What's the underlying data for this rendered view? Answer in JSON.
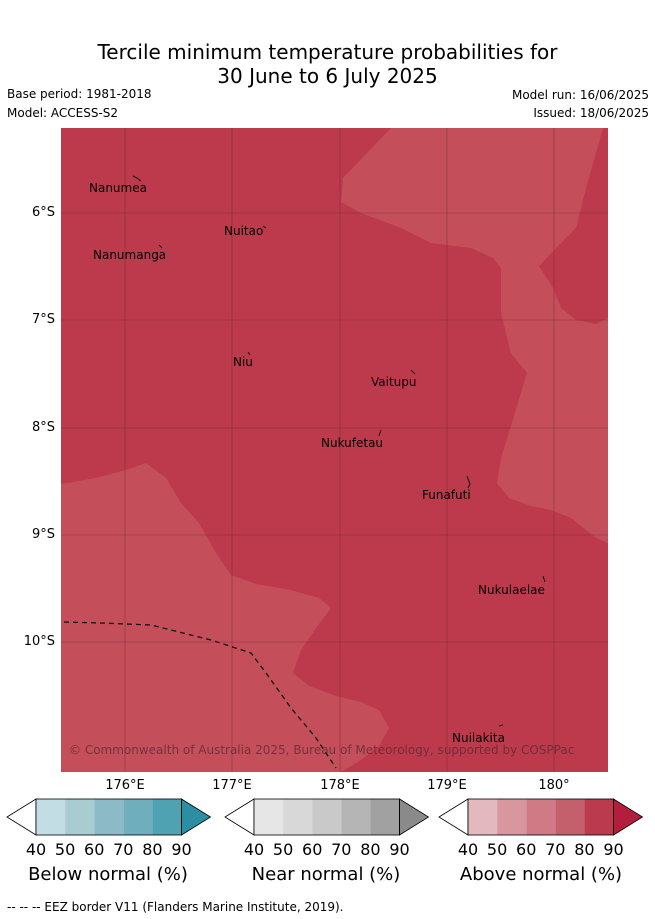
{
  "title_line1": "Tercile minimum temperature probabilities for",
  "title_line2": "30 June to 6 July 2025",
  "base_period": "Base period: 1981-2018",
  "model": "Model: ACCESS-S2",
  "model_run": "Model run: 16/06/2025",
  "issued": "Issued: 18/06/2025",
  "places": [
    "Nanumea",
    "Nuitao",
    "Nanumanga",
    "Niu",
    "Vaitupu",
    "Nukufetau",
    "Funafuti",
    "Nukulaelae",
    "Nuilakita"
  ],
  "lat_labels": [
    "6°S",
    "7°S",
    "8°S",
    "9°S",
    "10°S"
  ],
  "lon_labels": [
    "176°E",
    "177°E",
    "178°E",
    "179°E",
    "180°"
  ],
  "copyright": "© Commonwealth of Australia 2025, Bureau of Meteorology, supported by COSPPac",
  "colorbars": [
    {
      "label": "Below normal (%)",
      "ticks": [
        "40",
        "50",
        "60",
        "70",
        "80",
        "90"
      ],
      "colors": [
        "#c2dde3",
        "#a9ccd3",
        "#8cbac6",
        "#6fafbd",
        "#4fa2b2",
        "#2c8ea2"
      ]
    },
    {
      "label": "Near normal (%)",
      "ticks": [
        "40",
        "50",
        "60",
        "70",
        "80",
        "90"
      ],
      "colors": [
        "#e6e6e6",
        "#d8d8d8",
        "#c9c9c9",
        "#b5b5b5",
        "#a1a1a1",
        "#8a8a8a"
      ]
    },
    {
      "label": "Above normal (%)",
      "ticks": [
        "40",
        "50",
        "60",
        "70",
        "80",
        "90"
      ],
      "colors": [
        "#e3b8bf",
        "#d8979f",
        "#cf7a84",
        "#c45f6c",
        "#bb3a4e",
        "#b21e3c"
      ]
    }
  ],
  "map_colors": {
    "dark": "#bc3a4c",
    "light": "#c44f5b"
  },
  "footer": "--  --  -- EEZ border V11 (Flanders Marine Institute, 2019)."
}
